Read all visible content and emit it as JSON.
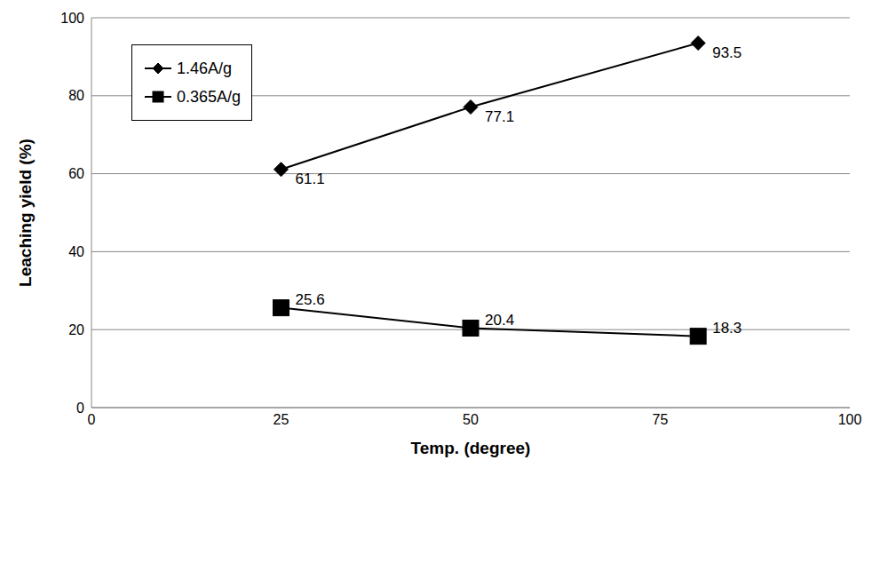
{
  "chart_data": {
    "type": "line",
    "x": [
      25,
      50,
      80
    ],
    "series": [
      {
        "name": "1.46A/g",
        "color": "#000000",
        "marker": "diamond",
        "values": [
          61.1,
          77.1,
          93.5
        ]
      },
      {
        "name": "0.365A/g",
        "color": "#000000",
        "marker": "square",
        "values": [
          25.6,
          20.4,
          18.3
        ]
      }
    ],
    "xlabel": "Temp. (degree)",
    "ylabel": "Leaching yield (%)",
    "xlim": [
      0,
      100
    ],
    "xticks": [
      0,
      25,
      50,
      75,
      100
    ],
    "ylim": [
      0,
      100
    ],
    "yticks": [
      0,
      20,
      40,
      60,
      80,
      100
    ],
    "grid": true,
    "legend": "upper left",
    "data_labels": true
  }
}
